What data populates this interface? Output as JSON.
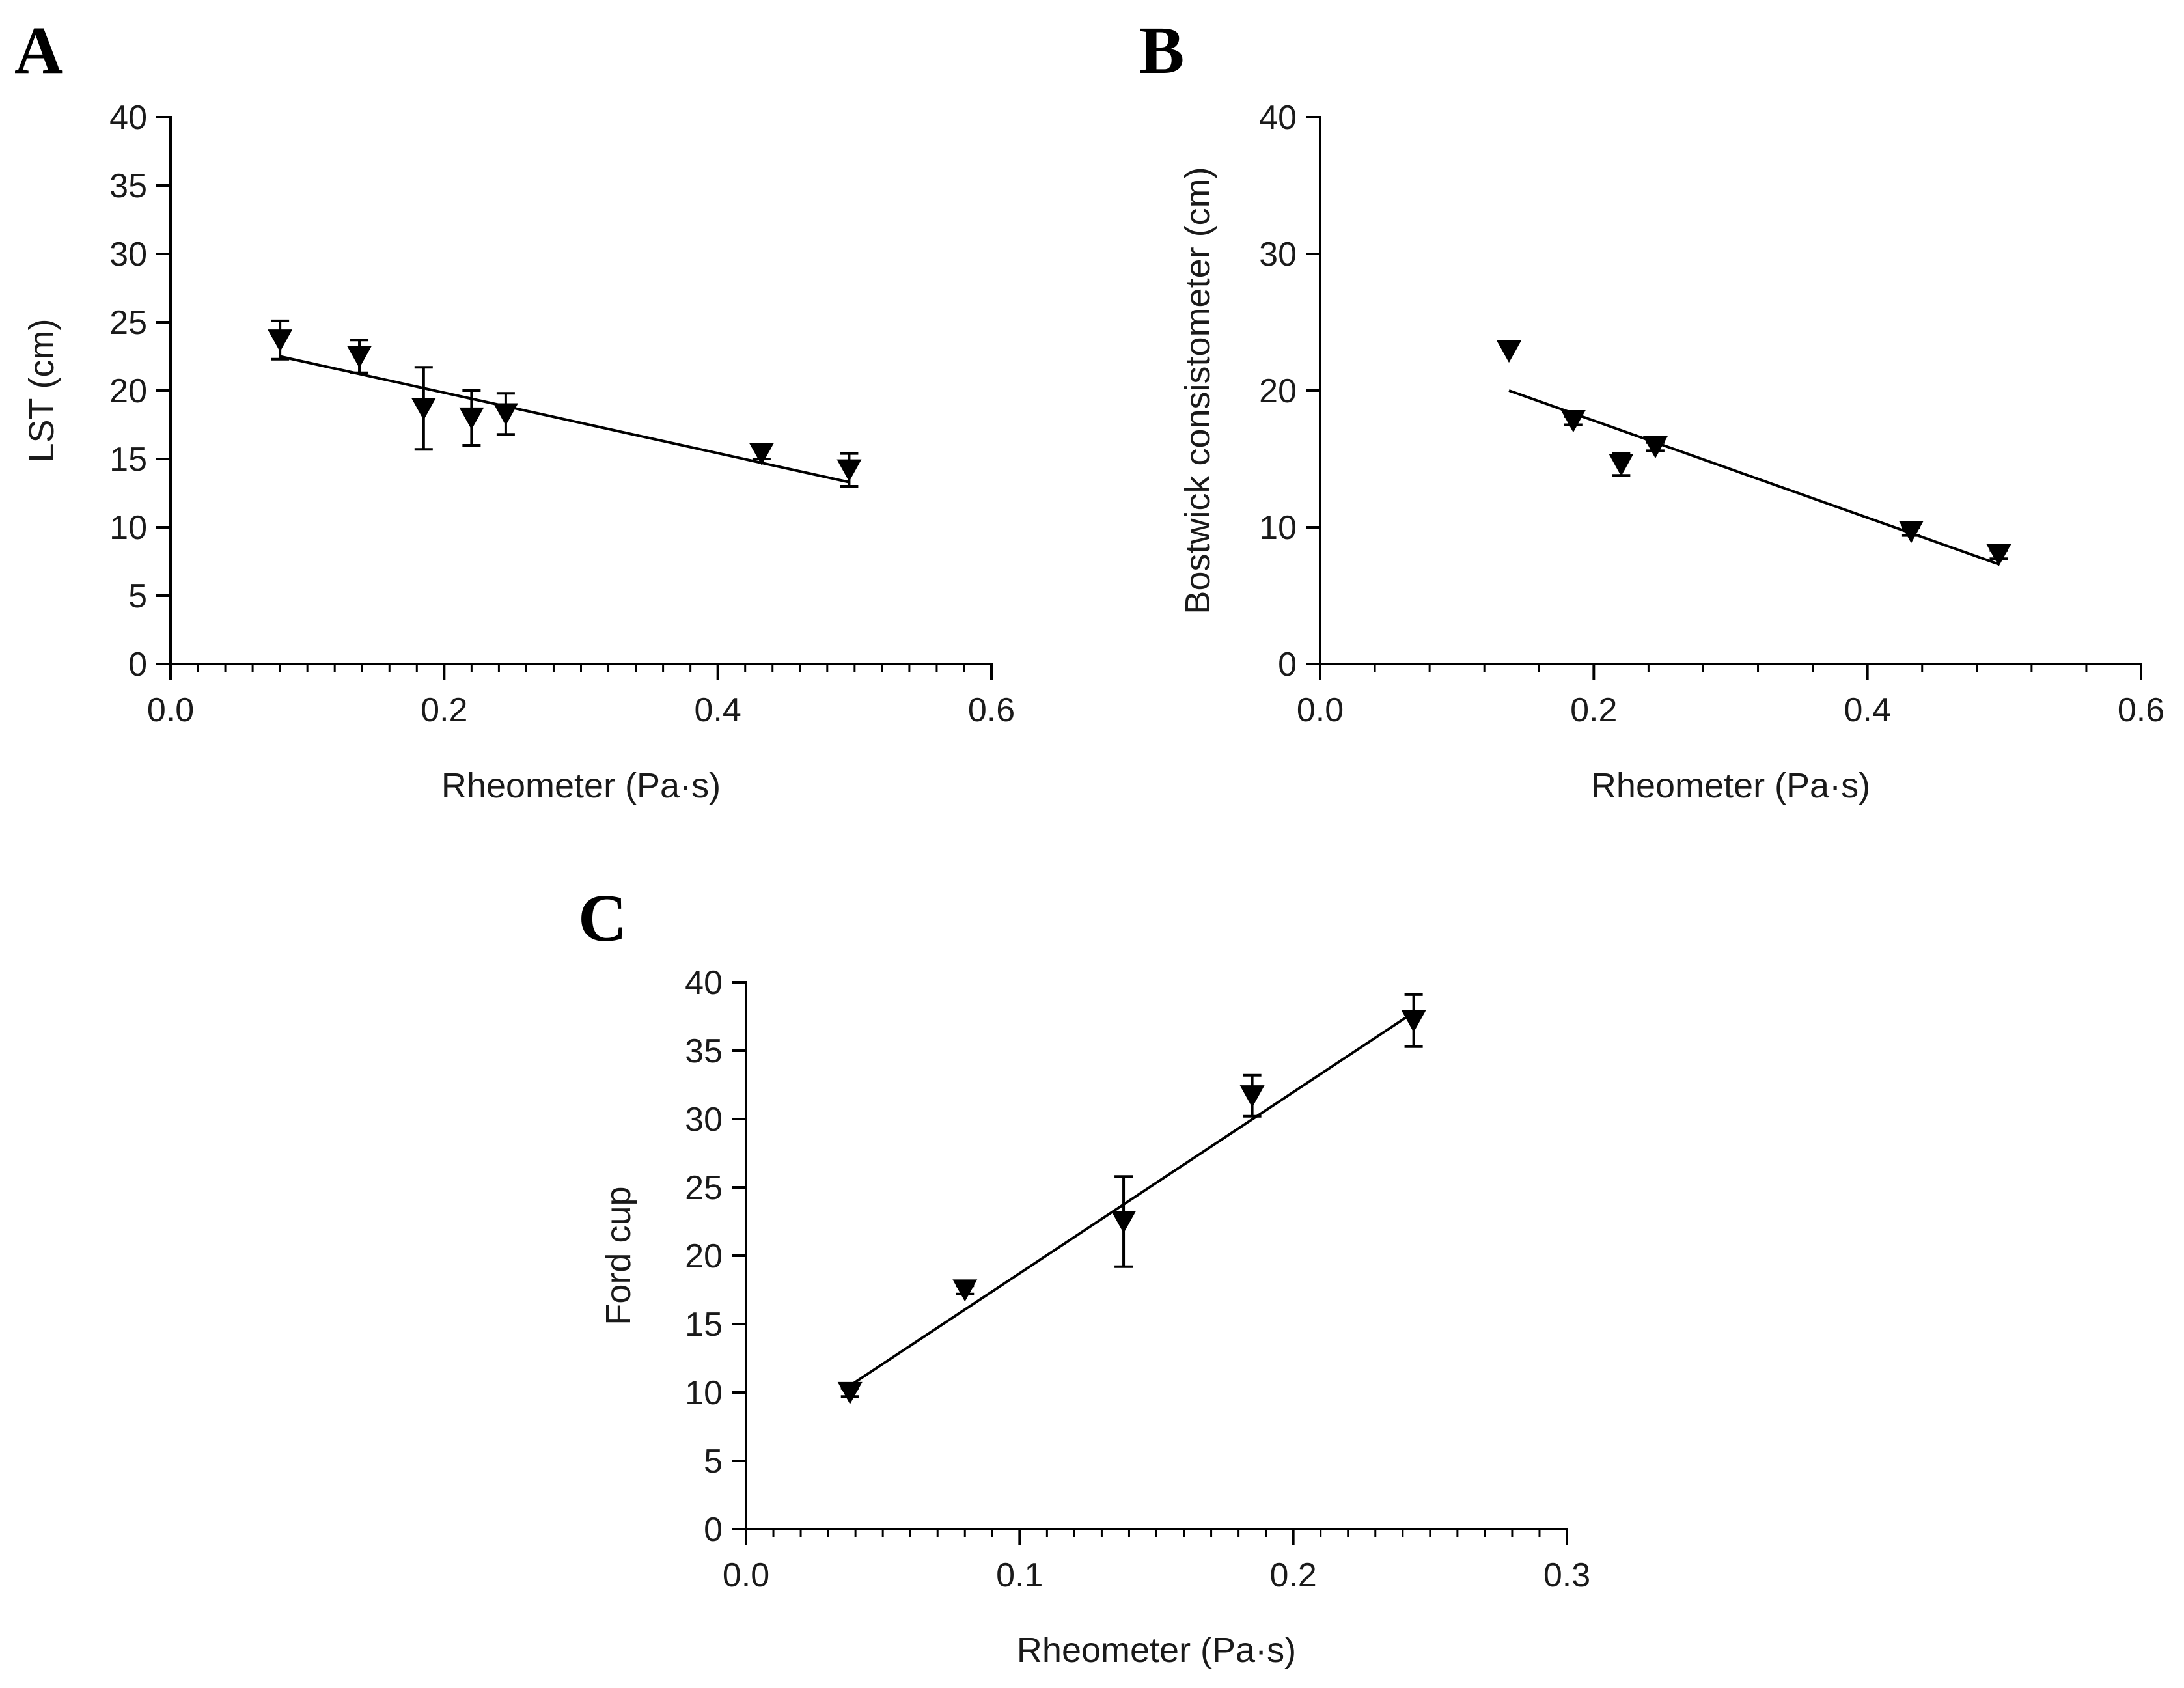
{
  "chart_data": [
    {
      "id": "A",
      "panel_label": "A",
      "type": "scatter",
      "xlabel": "Rheometer (Pa·s)",
      "ylabel": "LST (cm)",
      "xlim": [
        0,
        0.6
      ],
      "ylim": [
        0,
        40
      ],
      "x_ticks": [
        0,
        0.2,
        0.4,
        0.6
      ],
      "x_tick_labels": [
        "0.0",
        "0.2",
        "0.4",
        "0.6"
      ],
      "y_ticks": [
        0,
        5,
        10,
        15,
        20,
        25,
        30,
        35,
        40
      ],
      "y_tick_labels": [
        "0",
        "5",
        "10",
        "15",
        "20",
        "25",
        "30",
        "35",
        "40"
      ],
      "x_minor_step": 0.02,
      "marker": "triangle-down",
      "points": [
        {
          "x": 0.08,
          "y": 23.7,
          "err": 1.4
        },
        {
          "x": 0.138,
          "y": 22.5,
          "err": 1.2
        },
        {
          "x": 0.185,
          "y": 18.7,
          "err": 3.0
        },
        {
          "x": 0.22,
          "y": 18.0,
          "err": 2.0
        },
        {
          "x": 0.245,
          "y": 18.3,
          "err": 1.5
        },
        {
          "x": 0.432,
          "y": 15.4,
          "err": 0.4
        },
        {
          "x": 0.496,
          "y": 14.2,
          "err": 1.2
        }
      ],
      "fit_line": {
        "x": [
          0.08,
          0.496
        ],
        "y": [
          22.5,
          13.3
        ]
      }
    },
    {
      "id": "B",
      "panel_label": "B",
      "type": "scatter",
      "xlabel": "Rheometer (Pa·s)",
      "ylabel": "Bostwick consistometer (cm)",
      "xlim": [
        0,
        0.6
      ],
      "ylim": [
        0,
        40
      ],
      "x_ticks": [
        0,
        0.2,
        0.4,
        0.6
      ],
      "x_tick_labels": [
        "0.0",
        "0.2",
        "0.4",
        "0.6"
      ],
      "y_ticks": [
        0,
        10,
        20,
        30,
        40
      ],
      "y_tick_labels": [
        "0",
        "10",
        "20",
        "30",
        "40"
      ],
      "x_minor_step": 0.04,
      "marker": "triangle-down",
      "points": [
        {
          "x": 0.138,
          "y": 22.9,
          "err": 0
        },
        {
          "x": 0.185,
          "y": 17.8,
          "err": 0.3
        },
        {
          "x": 0.22,
          "y": 14.6,
          "err": 0.8
        },
        {
          "x": 0.245,
          "y": 15.9,
          "err": 0.3
        },
        {
          "x": 0.432,
          "y": 9.7,
          "err": 0.3
        },
        {
          "x": 0.496,
          "y": 8.0,
          "err": 0.3
        }
      ],
      "fit_line": {
        "x": [
          0.138,
          0.496
        ],
        "y": [
          20.0,
          7.3
        ]
      }
    },
    {
      "id": "C",
      "panel_label": "C",
      "type": "scatter",
      "xlabel": "Rheometer (Pa·s)",
      "ylabel": "Ford cup",
      "xlim": [
        0,
        0.3
      ],
      "ylim": [
        0,
        40
      ],
      "x_ticks": [
        0,
        0.1,
        0.2,
        0.3
      ],
      "x_tick_labels": [
        "0.0",
        "0.1",
        "0.2",
        "0.3"
      ],
      "y_ticks": [
        0,
        5,
        10,
        15,
        20,
        25,
        30,
        35,
        40
      ],
      "y_tick_labels": [
        "0",
        "5",
        "10",
        "15",
        "20",
        "25",
        "30",
        "35",
        "40"
      ],
      "x_minor_step": 0.01,
      "marker": "triangle-down",
      "points": [
        {
          "x": 0.038,
          "y": 10.0,
          "err": 0.3
        },
        {
          "x": 0.08,
          "y": 17.5,
          "err": 0.3
        },
        {
          "x": 0.138,
          "y": 22.5,
          "err": 3.3
        },
        {
          "x": 0.185,
          "y": 31.7,
          "err": 1.5
        },
        {
          "x": 0.244,
          "y": 37.2,
          "err": 1.9
        }
      ],
      "fit_line": {
        "x": [
          0.038,
          0.244
        ],
        "y": [
          10.5,
          37.8
        ]
      }
    }
  ]
}
